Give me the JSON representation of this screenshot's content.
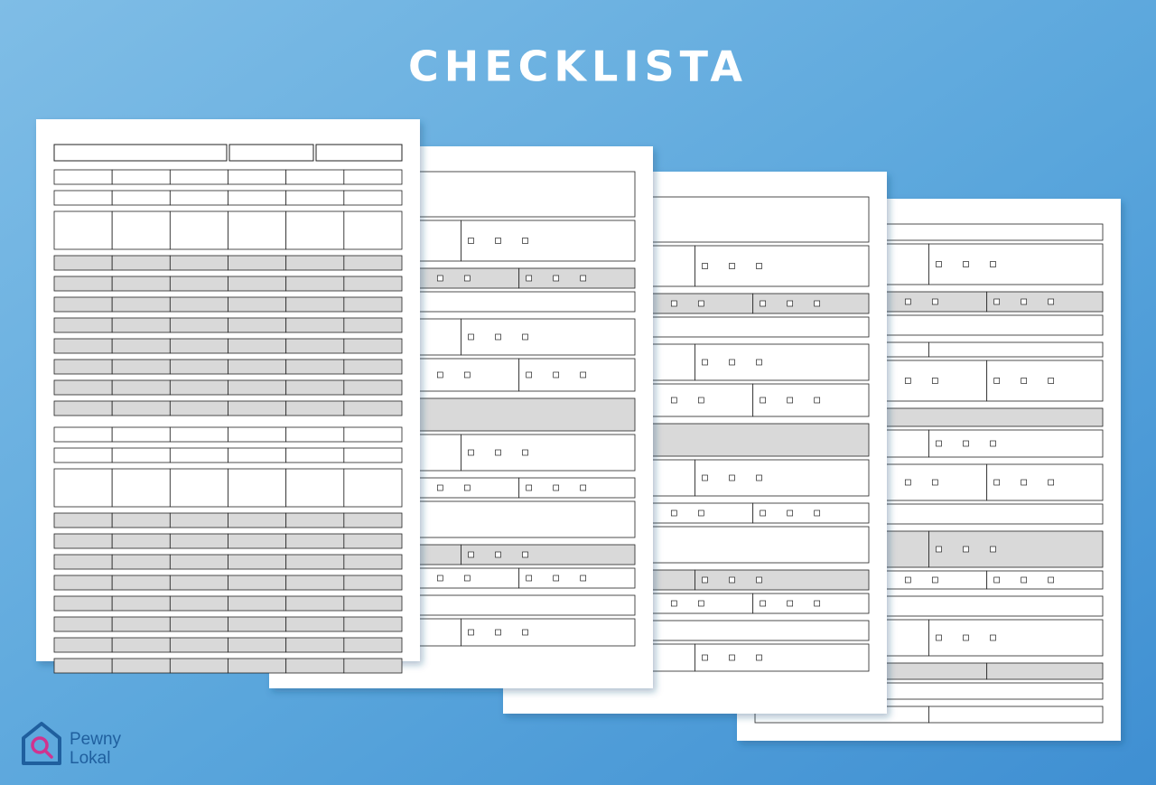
{
  "header": {
    "title": "CHECKLISTA"
  },
  "logo": {
    "line1": "Pewny",
    "line2": "Lokal"
  }
}
